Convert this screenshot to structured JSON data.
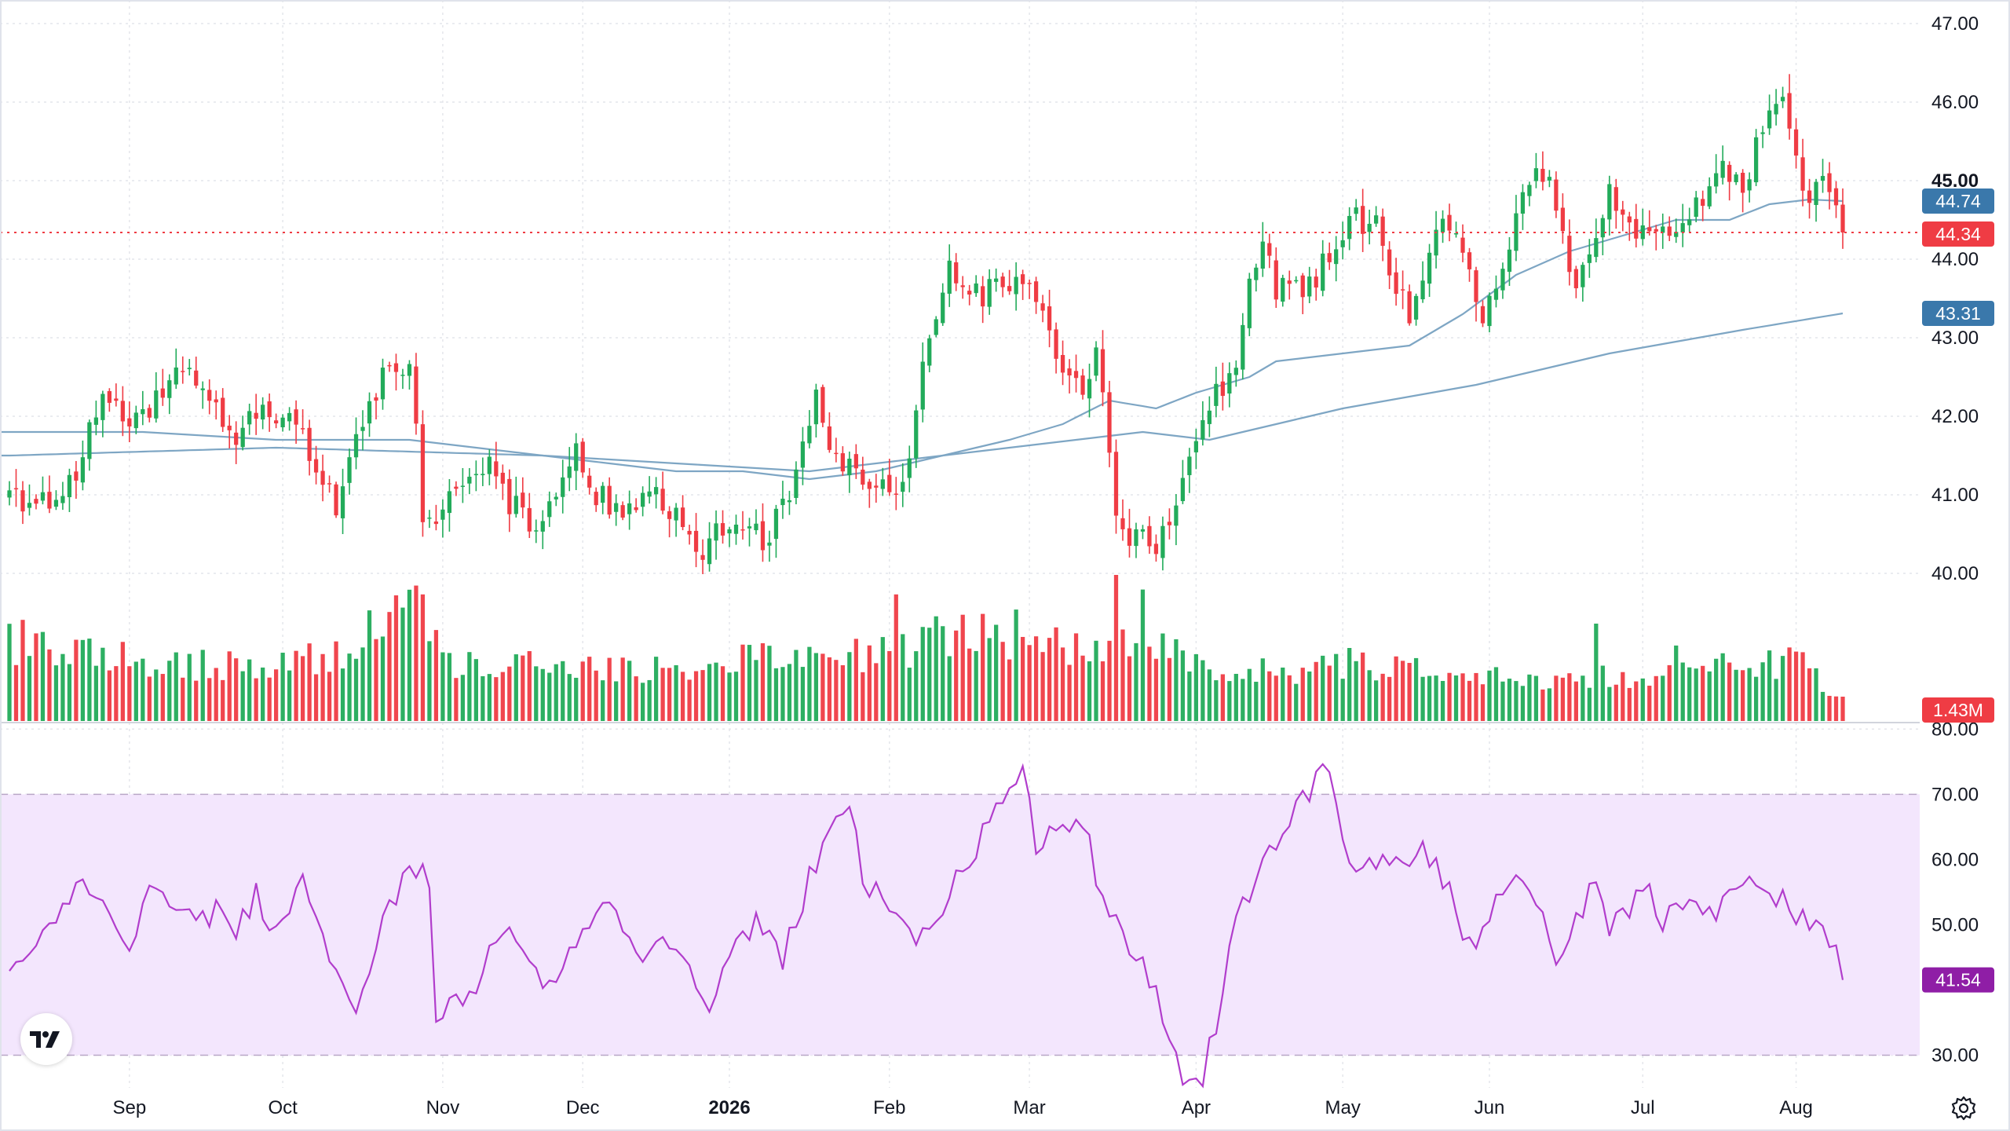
{
  "chart_data": [
    {
      "type": "candlestick",
      "title": "",
      "price_axis": {
        "min": 40.0,
        "max": 47.0,
        "ticks": [
          "47.00",
          "46.00",
          "45.00",
          "44.00",
          "43.00",
          "42.00",
          "41.00",
          "40.00"
        ],
        "bold_tick": "45.00",
        "visible_range": [
          38.1,
          47.3
        ]
      },
      "x_axis": {
        "labels": [
          {
            "label": "Sep",
            "index": 18
          },
          {
            "label": "Oct",
            "index": 41
          },
          {
            "label": "Nov",
            "index": 65
          },
          {
            "label": "Dec",
            "index": 86
          },
          {
            "label": "2026",
            "index": 108,
            "bold": true
          },
          {
            "label": "Feb",
            "index": 132
          },
          {
            "label": "Mar",
            "index": 153
          },
          {
            "label": "Apr",
            "index": 178
          },
          {
            "label": "May",
            "index": 200
          },
          {
            "label": "Jun",
            "index": 222
          },
          {
            "label": "Jul",
            "index": 245
          },
          {
            "label": "Aug",
            "index": 268
          }
        ],
        "start_index": 0,
        "end_index": 275
      },
      "price_anchors": [
        [
          0,
          41.0
        ],
        [
          5,
          40.9
        ],
        [
          10,
          41.3
        ],
        [
          14,
          42.3
        ],
        [
          18,
          41.8
        ],
        [
          22,
          42.2
        ],
        [
          26,
          42.6
        ],
        [
          30,
          42.1
        ],
        [
          34,
          41.8
        ],
        [
          38,
          42.0
        ],
        [
          42,
          42.1
        ],
        [
          46,
          41.4
        ],
        [
          49,
          40.8
        ],
        [
          52,
          41.6
        ],
        [
          56,
          42.5
        ],
        [
          60,
          42.7
        ],
        [
          61,
          41.9
        ],
        [
          62,
          40.6
        ],
        [
          65,
          40.9
        ],
        [
          68,
          41.1
        ],
        [
          72,
          41.4
        ],
        [
          75,
          40.9
        ],
        [
          79,
          40.6
        ],
        [
          82,
          41.1
        ],
        [
          85,
          41.6
        ],
        [
          88,
          41.0
        ],
        [
          92,
          40.8
        ],
        [
          96,
          41.0
        ],
        [
          100,
          40.7
        ],
        [
          103,
          40.2
        ],
        [
          106,
          40.6
        ],
        [
          110,
          40.7
        ],
        [
          113,
          40.4
        ],
        [
          116,
          40.8
        ],
        [
          118,
          41.2
        ],
        [
          120,
          42.0
        ],
        [
          121,
          42.3
        ],
        [
          123,
          41.6
        ],
        [
          126,
          41.3
        ],
        [
          130,
          41.1
        ],
        [
          133,
          40.9
        ],
        [
          135,
          41.6
        ],
        [
          137,
          42.8
        ],
        [
          139,
          43.2
        ],
        [
          141,
          43.9
        ],
        [
          144,
          43.5
        ],
        [
          147,
          43.6
        ],
        [
          150,
          43.7
        ],
        [
          153,
          43.6
        ],
        [
          156,
          43.1
        ],
        [
          158,
          42.4
        ],
        [
          161,
          42.3
        ],
        [
          163,
          42.9
        ],
        [
          164,
          42.2
        ],
        [
          165,
          41.7
        ],
        [
          166,
          40.7
        ],
        [
          168,
          40.3
        ],
        [
          170,
          40.6
        ],
        [
          172,
          40.3
        ],
        [
          174,
          40.6
        ],
        [
          176,
          41.1
        ],
        [
          178,
          41.7
        ],
        [
          181,
          42.3
        ],
        [
          184,
          42.7
        ],
        [
          186,
          43.6
        ],
        [
          188,
          44.3
        ],
        [
          190,
          43.6
        ],
        [
          193,
          43.6
        ],
        [
          196,
          43.8
        ],
        [
          199,
          44.3
        ],
        [
          202,
          44.5
        ],
        [
          205,
          44.4
        ],
        [
          208,
          43.6
        ],
        [
          210,
          43.3
        ],
        [
          213,
          44.2
        ],
        [
          215,
          44.6
        ],
        [
          217,
          44.2
        ],
        [
          219,
          43.9
        ],
        [
          221,
          43.3
        ],
        [
          223,
          43.6
        ],
        [
          226,
          44.5
        ],
        [
          229,
          45.1
        ],
        [
          231,
          44.9
        ],
        [
          233,
          44.2
        ],
        [
          235,
          43.7
        ],
        [
          238,
          44.4
        ],
        [
          240,
          44.9
        ],
        [
          242,
          44.5
        ],
        [
          244,
          44.3
        ],
        [
          246,
          44.4
        ],
        [
          248,
          44.4
        ],
        [
          251,
          44.5
        ],
        [
          254,
          44.8
        ],
        [
          256,
          45.2
        ],
        [
          258,
          45.1
        ],
        [
          260,
          44.9
        ],
        [
          262,
          45.4
        ],
        [
          264,
          45.9
        ],
        [
          266,
          46.1
        ],
        [
          268,
          45.2
        ],
        [
          270,
          44.8
        ],
        [
          272,
          45.2
        ],
        [
          274,
          44.7
        ],
        [
          275,
          44.34
        ]
      ],
      "ma_50_anchors": [
        [
          0,
          41.8
        ],
        [
          20,
          41.8
        ],
        [
          40,
          41.7
        ],
        [
          60,
          41.7
        ],
        [
          80,
          41.5
        ],
        [
          100,
          41.3
        ],
        [
          110,
          41.3
        ],
        [
          120,
          41.2
        ],
        [
          130,
          41.3
        ],
        [
          140,
          41.5
        ],
        [
          150,
          41.7
        ],
        [
          158,
          41.9
        ],
        [
          165,
          42.2
        ],
        [
          172,
          42.1
        ],
        [
          178,
          42.3
        ],
        [
          186,
          42.5
        ],
        [
          190,
          42.7
        ],
        [
          200,
          42.8
        ],
        [
          210,
          42.9
        ],
        [
          218,
          43.3
        ],
        [
          226,
          43.8
        ],
        [
          234,
          44.1
        ],
        [
          242,
          44.3
        ],
        [
          250,
          44.5
        ],
        [
          258,
          44.5
        ],
        [
          264,
          44.7
        ],
        [
          270,
          44.76
        ],
        [
          275,
          44.74
        ]
      ],
      "ma_200_anchors": [
        [
          0,
          41.5
        ],
        [
          40,
          41.6
        ],
        [
          80,
          41.5
        ],
        [
          120,
          41.3
        ],
        [
          150,
          41.6
        ],
        [
          170,
          41.8
        ],
        [
          180,
          41.7
        ],
        [
          200,
          42.1
        ],
        [
          220,
          42.4
        ],
        [
          240,
          42.8
        ],
        [
          260,
          43.1
        ],
        [
          275,
          43.31
        ]
      ],
      "volume_anchors": [
        [
          0,
          0.33
        ],
        [
          10,
          0.3
        ],
        [
          20,
          0.24
        ],
        [
          40,
          0.22
        ],
        [
          50,
          0.28
        ],
        [
          61,
          0.48
        ],
        [
          66,
          0.24
        ],
        [
          80,
          0.22
        ],
        [
          100,
          0.22
        ],
        [
          110,
          0.25
        ],
        [
          120,
          0.3
        ],
        [
          130,
          0.26
        ],
        [
          140,
          0.34
        ],
        [
          150,
          0.36
        ],
        [
          165,
          0.28
        ],
        [
          172,
          0.32
        ],
        [
          180,
          0.2
        ],
        [
          195,
          0.2
        ],
        [
          200,
          0.23
        ],
        [
          220,
          0.18
        ],
        [
          240,
          0.18
        ],
        [
          250,
          0.2
        ],
        [
          260,
          0.22
        ],
        [
          268,
          0.24
        ],
        [
          275,
          0.1
        ]
      ],
      "volume_spikes": [
        {
          "index": 62,
          "value": 0.52
        },
        {
          "index": 133,
          "value": 0.52
        },
        {
          "index": 139,
          "value": 0.43
        },
        {
          "index": 146,
          "value": 0.44
        },
        {
          "index": 160,
          "value": 0.36
        },
        {
          "index": 166,
          "value": 0.6
        },
        {
          "index": 170,
          "value": 0.54
        },
        {
          "index": 201,
          "value": 0.3
        },
        {
          "index": 238,
          "value": 0.4
        },
        {
          "index": 250,
          "value": 0.31
        }
      ],
      "last_values": {
        "price": "44.34",
        "ma_50": "44.74",
        "ma_200": "43.31",
        "volume": "1.43M"
      }
    },
    {
      "type": "line",
      "title": "",
      "indicator": "RSI",
      "y_axis": {
        "ticks": [
          "80.00",
          "70.00",
          "60.00",
          "50.00",
          "30.00"
        ],
        "visible_range": [
          25.0,
          81.0
        ],
        "band": [
          30,
          70
        ]
      },
      "rsi_anchors": [
        [
          0,
          42
        ],
        [
          4,
          46
        ],
        [
          8,
          52
        ],
        [
          10,
          57
        ],
        [
          13,
          55
        ],
        [
          16,
          50
        ],
        [
          18,
          48
        ],
        [
          22,
          57
        ],
        [
          25,
          53
        ],
        [
          28,
          51
        ],
        [
          31,
          52
        ],
        [
          34,
          49
        ],
        [
          37,
          55
        ],
        [
          40,
          48
        ],
        [
          44,
          56
        ],
        [
          48,
          46
        ],
        [
          52,
          35
        ],
        [
          56,
          50
        ],
        [
          60,
          60
        ],
        [
          63,
          57
        ],
        [
          64,
          37
        ],
        [
          66,
          38
        ],
        [
          70,
          40
        ],
        [
          74,
          50
        ],
        [
          78,
          44
        ],
        [
          82,
          40
        ],
        [
          86,
          51
        ],
        [
          90,
          52
        ],
        [
          94,
          45
        ],
        [
          98,
          49
        ],
        [
          102,
          44
        ],
        [
          105,
          38
        ],
        [
          108,
          45
        ],
        [
          112,
          50
        ],
        [
          116,
          45
        ],
        [
          120,
          57
        ],
        [
          123,
          65
        ],
        [
          126,
          70
        ],
        [
          128,
          56
        ],
        [
          132,
          54
        ],
        [
          136,
          48
        ],
        [
          140,
          53
        ],
        [
          144,
          60
        ],
        [
          148,
          68
        ],
        [
          152,
          73
        ],
        [
          154,
          62
        ],
        [
          158,
          66
        ],
        [
          162,
          63
        ],
        [
          164,
          53
        ],
        [
          168,
          47
        ],
        [
          172,
          40
        ],
        [
          176,
          27
        ],
        [
          179,
          27
        ],
        [
          181,
          35
        ],
        [
          184,
          50
        ],
        [
          188,
          60
        ],
        [
          192,
          66
        ],
        [
          196,
          72
        ],
        [
          198,
          74
        ],
        [
          200,
          62
        ],
        [
          203,
          58
        ],
        [
          206,
          60
        ],
        [
          209,
          58
        ],
        [
          212,
          61
        ],
        [
          214,
          59
        ],
        [
          216,
          56
        ],
        [
          218,
          47
        ],
        [
          221,
          48
        ],
        [
          224,
          55
        ],
        [
          228,
          57
        ],
        [
          230,
          52
        ],
        [
          232,
          43
        ],
        [
          236,
          53
        ],
        [
          238,
          57
        ],
        [
          240,
          50
        ],
        [
          243,
          53
        ],
        [
          246,
          56
        ],
        [
          248,
          50
        ],
        [
          252,
          55
        ],
        [
          256,
          52
        ],
        [
          260,
          57
        ],
        [
          264,
          55
        ],
        [
          268,
          52
        ],
        [
          270,
          50
        ],
        [
          272,
          50
        ],
        [
          274,
          47
        ],
        [
          275,
          41.54
        ]
      ],
      "last_value": "41.54"
    }
  ],
  "colors": {
    "up": "#22ab5a",
    "down": "#ef3c44",
    "ma_line": "#7ea6c4",
    "ma_badge": "#3a78ab",
    "price_badge": "#ef3c44",
    "rsi_line": "#b13dcc",
    "rsi_band": "#f3e6fd",
    "rsi_badge": "#8f1ea6",
    "grid": "#e4e6eb"
  },
  "icons": {
    "logo": "tradingview-logo",
    "settings": "gear-icon"
  }
}
